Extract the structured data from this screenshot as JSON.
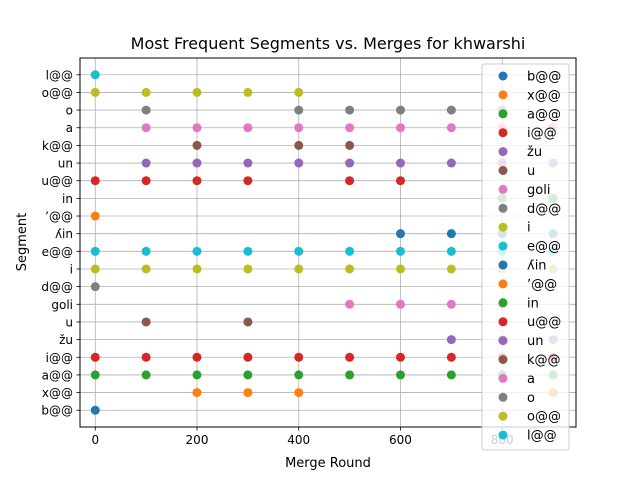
{
  "chart_data": {
    "type": "scatter",
    "title": "Most Frequent Segments vs. Merges for khwarshi",
    "xlabel": "Merge Round",
    "ylabel": "Segment",
    "xlim": [
      -30,
      945
    ],
    "x_ticks": [
      0,
      200,
      400,
      600,
      800
    ],
    "grid": true,
    "legend_position": "upper right",
    "categories": [
      "b@@",
      "x@@",
      "a@@",
      "i@@",
      "žu",
      "u",
      "goli",
      "d@@",
      "i",
      "e@@",
      "ʎin",
      "ʼ@@",
      "in",
      "u@@",
      "un",
      "k@@",
      "a",
      "o",
      "o@@",
      "l@@"
    ],
    "series": [
      {
        "name": "b@@",
        "color": "#1f77b4",
        "points": [
          [
            0,
            "b@@"
          ]
        ]
      },
      {
        "name": "x@@",
        "color": "#ff7f0e",
        "points": [
          [
            200,
            "x@@"
          ],
          [
            300,
            "x@@"
          ],
          [
            400,
            "x@@"
          ],
          [
            900,
            "x@@"
          ]
        ]
      },
      {
        "name": "a@@",
        "color": "#2ca02c",
        "points": [
          [
            0,
            "a@@"
          ],
          [
            100,
            "a@@"
          ],
          [
            200,
            "a@@"
          ],
          [
            300,
            "a@@"
          ],
          [
            400,
            "a@@"
          ],
          [
            500,
            "a@@"
          ],
          [
            600,
            "a@@"
          ],
          [
            700,
            "a@@"
          ],
          [
            800,
            "a@@"
          ],
          [
            900,
            "a@@"
          ]
        ]
      },
      {
        "name": "i@@",
        "color": "#d62728",
        "points": [
          [
            0,
            "i@@"
          ],
          [
            100,
            "i@@"
          ],
          [
            200,
            "i@@"
          ],
          [
            300,
            "i@@"
          ],
          [
            400,
            "i@@"
          ],
          [
            500,
            "i@@"
          ],
          [
            600,
            "i@@"
          ],
          [
            700,
            "i@@"
          ],
          [
            800,
            "i@@"
          ],
          [
            900,
            "i@@"
          ]
        ]
      },
      {
        "name": "žu",
        "color": "#9467bd",
        "points": [
          [
            700,
            "žu"
          ],
          [
            800,
            "žu"
          ],
          [
            900,
            "žu"
          ]
        ]
      },
      {
        "name": "u",
        "color": "#8c564b",
        "points": [
          [
            100,
            "u"
          ],
          [
            300,
            "u"
          ]
        ]
      },
      {
        "name": "goli",
        "color": "#e377c2",
        "points": [
          [
            500,
            "goli"
          ],
          [
            600,
            "goli"
          ],
          [
            700,
            "goli"
          ],
          [
            800,
            "goli"
          ]
        ]
      },
      {
        "name": "d@@",
        "color": "#7f7f7f",
        "points": [
          [
            0,
            "d@@"
          ]
        ]
      },
      {
        "name": "i",
        "color": "#bcbd22",
        "points": [
          [
            0,
            "i"
          ],
          [
            100,
            "i"
          ],
          [
            200,
            "i"
          ],
          [
            300,
            "i"
          ],
          [
            400,
            "i"
          ],
          [
            500,
            "i"
          ],
          [
            600,
            "i"
          ],
          [
            700,
            "i"
          ],
          [
            800,
            "i"
          ],
          [
            900,
            "i"
          ]
        ]
      },
      {
        "name": "e@@",
        "color": "#17becf",
        "points": [
          [
            0,
            "e@@"
          ],
          [
            100,
            "e@@"
          ],
          [
            200,
            "e@@"
          ],
          [
            300,
            "e@@"
          ],
          [
            400,
            "e@@"
          ],
          [
            500,
            "e@@"
          ],
          [
            600,
            "e@@"
          ],
          [
            700,
            "e@@"
          ],
          [
            800,
            "e@@"
          ],
          [
            900,
            "e@@"
          ]
        ]
      },
      {
        "name": "ʎin",
        "color": "#1f77b4",
        "points": [
          [
            600,
            "ʎin"
          ],
          [
            700,
            "ʎin"
          ],
          [
            800,
            "ʎin"
          ],
          [
            900,
            "ʎin"
          ]
        ]
      },
      {
        "name": "ʼ@@",
        "color": "#ff7f0e",
        "points": [
          [
            0,
            "ʼ@@"
          ]
        ]
      },
      {
        "name": "in",
        "color": "#2ca02c",
        "points": [
          [
            800,
            "in"
          ],
          [
            900,
            "in"
          ]
        ]
      },
      {
        "name": "u@@",
        "color": "#d62728",
        "points": [
          [
            0,
            "u@@"
          ],
          [
            100,
            "u@@"
          ],
          [
            200,
            "u@@"
          ],
          [
            300,
            "u@@"
          ],
          [
            500,
            "u@@"
          ],
          [
            600,
            "u@@"
          ]
        ]
      },
      {
        "name": "un",
        "color": "#9467bd",
        "points": [
          [
            100,
            "un"
          ],
          [
            200,
            "un"
          ],
          [
            300,
            "un"
          ],
          [
            400,
            "un"
          ],
          [
            500,
            "un"
          ],
          [
            600,
            "un"
          ],
          [
            700,
            "un"
          ],
          [
            800,
            "un"
          ],
          [
            900,
            "un"
          ]
        ]
      },
      {
        "name": "k@@",
        "color": "#8c564b",
        "points": [
          [
            200,
            "k@@"
          ],
          [
            400,
            "k@@"
          ],
          [
            500,
            "k@@"
          ]
        ]
      },
      {
        "name": "a",
        "color": "#e377c2",
        "points": [
          [
            100,
            "a"
          ],
          [
            200,
            "a"
          ],
          [
            300,
            "a"
          ],
          [
            400,
            "a"
          ],
          [
            500,
            "a"
          ],
          [
            600,
            "a"
          ],
          [
            700,
            "a"
          ],
          [
            800,
            "a"
          ],
          [
            900,
            "a"
          ]
        ]
      },
      {
        "name": "o",
        "color": "#7f7f7f",
        "points": [
          [
            100,
            "o"
          ],
          [
            400,
            "o"
          ],
          [
            500,
            "o"
          ],
          [
            600,
            "o"
          ],
          [
            700,
            "o"
          ],
          [
            800,
            "o"
          ]
        ]
      },
      {
        "name": "o@@",
        "color": "#bcbd22",
        "points": [
          [
            0,
            "o@@"
          ],
          [
            100,
            "o@@"
          ],
          [
            200,
            "o@@"
          ],
          [
            300,
            "o@@"
          ],
          [
            400,
            "o@@"
          ]
        ]
      },
      {
        "name": "l@@",
        "color": "#17becf",
        "points": [
          [
            0,
            "l@@"
          ]
        ]
      }
    ]
  }
}
